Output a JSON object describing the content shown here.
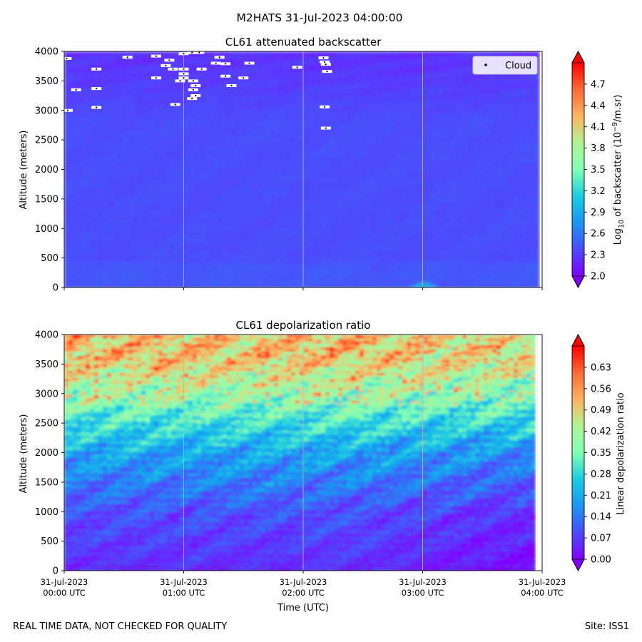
{
  "suptitle": "M2HATS 31-Jul-2023 04:00:00",
  "footer": {
    "left": "REAL TIME DATA, NOT CHECKED FOR QUALITY",
    "right": "Site: ISS1"
  },
  "x_axis": {
    "label": "Time (UTC)",
    "range_hours": [
      0,
      4
    ],
    "ticks": [
      {
        "hour": 0,
        "date": "31-Jul-2023",
        "time": "00:00 UTC"
      },
      {
        "hour": 1,
        "date": "31-Jul-2023",
        "time": "01:00 UTC"
      },
      {
        "hour": 2,
        "date": "31-Jul-2023",
        "time": "02:00 UTC"
      },
      {
        "hour": 3,
        "date": "31-Jul-2023",
        "time": "03:00 UTC"
      },
      {
        "hour": 4,
        "date": "31-Jul-2023",
        "time": "04:00 UTC"
      }
    ]
  },
  "chart_data": [
    {
      "type": "heatmap",
      "title": "CL61 attenuated backscatter",
      "ylabel": "Altitude (meters)",
      "ylim": [
        0,
        4000
      ],
      "yticks": [
        0,
        500,
        1000,
        1500,
        2000,
        2500,
        3000,
        3500,
        4000
      ],
      "colorbar": {
        "label_prefix": "Log",
        "label_sub": "10",
        "label_mid": " of backscatter (10",
        "label_sup": "−9",
        "label_suffix": "/m.sr)",
        "range": [
          2.0,
          5.0
        ],
        "ticks": [
          "2.0",
          "2.3",
          "2.6",
          "2.9",
          "3.2",
          "3.5",
          "3.8",
          "4.1",
          "4.4",
          "4.7"
        ],
        "tick_values": [
          2.0,
          2.3,
          2.6,
          2.9,
          3.2,
          3.5,
          3.8,
          4.1,
          4.4,
          4.7
        ]
      },
      "legend": {
        "label": "Cloud",
        "position": "upper-right"
      },
      "description_of_field": "Mostly low backscatter (~2.2-2.5); upper levels (3000-4000 m) darker purple; cloud detections near 3000-4000 m",
      "cloud_points": [
        [
          0.02,
          3880
        ],
        [
          0.27,
          3700
        ],
        [
          0.53,
          3900
        ],
        [
          0.77,
          3920
        ],
        [
          0.88,
          3850
        ],
        [
          0.1,
          3350
        ],
        [
          0.27,
          3370
        ],
        [
          0.27,
          3050
        ],
        [
          0.03,
          3000
        ],
        [
          0.77,
          3550
        ],
        [
          0.85,
          3760
        ],
        [
          0.91,
          3700
        ],
        [
          1.0,
          3550
        ],
        [
          1.0,
          3620
        ],
        [
          1.0,
          3700
        ],
        [
          0.97,
          3500
        ],
        [
          1.08,
          3500
        ],
        [
          1.1,
          3420
        ],
        [
          1.08,
          3350
        ],
        [
          1.1,
          3250
        ],
        [
          0.93,
          3100
        ],
        [
          1.07,
          3200
        ],
        [
          1.3,
          3900
        ],
        [
          1.27,
          3800
        ],
        [
          1.35,
          3790
        ],
        [
          1.13,
          3980
        ],
        [
          1.15,
          3700
        ],
        [
          1.35,
          3580
        ],
        [
          1.5,
          3550
        ],
        [
          1.4,
          3420
        ],
        [
          1.55,
          3800
        ],
        [
          1.95,
          3730
        ],
        [
          2.17,
          3890
        ],
        [
          2.18,
          3820
        ],
        [
          2.19,
          3780
        ],
        [
          2.2,
          3660
        ],
        [
          2.18,
          3060
        ],
        [
          2.19,
          2700
        ],
        [
          1.0,
          3960
        ],
        [
          1.07,
          3980
        ]
      ]
    },
    {
      "type": "heatmap",
      "title": "CL61 depolarization ratio",
      "ylabel": "Altitude (meters)",
      "ylim": [
        0,
        4000
      ],
      "yticks": [
        0,
        500,
        1000,
        1500,
        2000,
        2500,
        3000,
        3500,
        4000
      ],
      "colorbar": {
        "label": "Linear depolarization ratio",
        "range": [
          0.0,
          0.7
        ],
        "ticks": [
          "0.00",
          "0.07",
          "0.14",
          "0.21",
          "0.28",
          "0.35",
          "0.42",
          "0.49",
          "0.56",
          "0.63"
        ],
        "tick_values": [
          0.0,
          0.07,
          0.14,
          0.21,
          0.28,
          0.35,
          0.42,
          0.49,
          0.56,
          0.63
        ]
      },
      "description_of_field": "Low depolarization (~0.05) below 1000 m, increasing to ~0.15-0.3 at 1500-2500 m, ~0.4-0.6 with red patches above 2800 m"
    }
  ]
}
